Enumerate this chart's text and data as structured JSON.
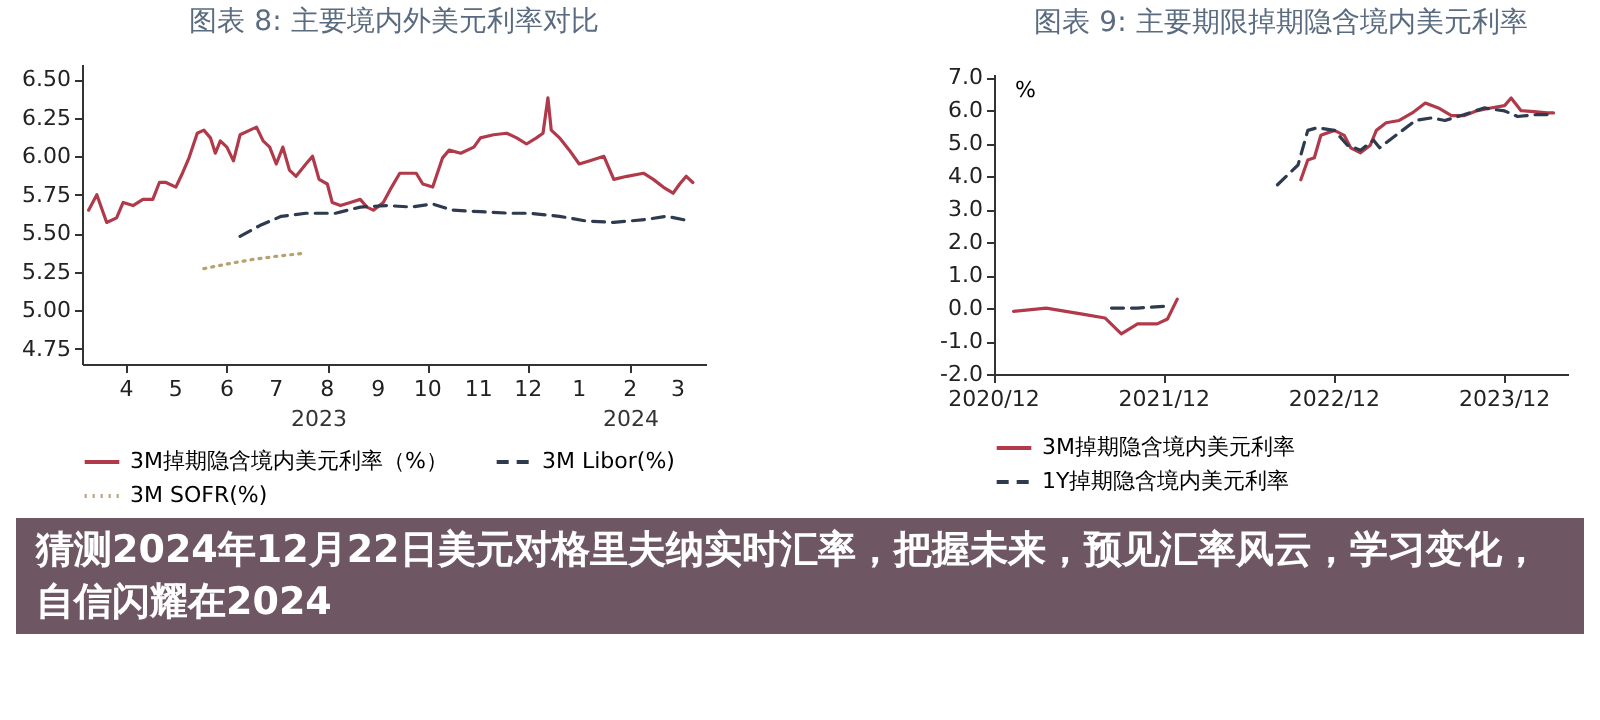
{
  "chart_data": [
    {
      "type": "line",
      "title": "图表 8: 主要境内外美元利率对比",
      "xlim": [
        "2023-03-19",
        "2024-04-01"
      ],
      "ylim": [
        4.65,
        6.6
      ],
      "yticks": [
        {
          "value": 4.75,
          "label": "4.75"
        },
        {
          "value": 5,
          "label": "5.00"
        },
        {
          "value": 5.25,
          "label": "5.25"
        },
        {
          "value": 5.5,
          "label": "5.50"
        },
        {
          "value": 5.75,
          "label": "5.75"
        },
        {
          "value": 6,
          "label": "6.00"
        },
        {
          "value": 6.25,
          "label": "6.25"
        },
        {
          "value": 6.5,
          "label": "6.50"
        }
      ],
      "xticks": [
        {
          "value": "2023-04-15",
          "label": "4"
        },
        {
          "value": "2023-05-15",
          "label": "5"
        },
        {
          "value": "2023-06-15",
          "label": "6"
        },
        {
          "value": "2023-07-15",
          "label": "7"
        },
        {
          "value": "2023-08-15",
          "label": "8"
        },
        {
          "value": "2023-09-15",
          "label": "9"
        },
        {
          "value": "2023-10-15",
          "label": "10"
        },
        {
          "value": "2023-11-15",
          "label": "11"
        },
        {
          "value": "2023-12-15",
          "label": "12"
        },
        {
          "value": "2024-01-15",
          "label": "1"
        },
        {
          "value": "2024-02-15",
          "label": "2"
        },
        {
          "value": "2024-03-15",
          "label": "3"
        }
      ],
      "annotations": [
        "2023",
        "2024"
      ],
      "legend": "bottom",
      "marker": "none",
      "grid": false,
      "series": [
        {
          "name": "3M掉期隐含境内美元利率（%）",
          "color": "#b03a4a",
          "line_style": "solid",
          "x": [
            "2023-03-23",
            "2023-03-28",
            "2023-04-03",
            "2023-04-09",
            "2023-04-13",
            "2023-04-19",
            "2023-04-25",
            "2023-05-01",
            "2023-05-05",
            "2023-05-09",
            "2023-05-15",
            "2023-05-19",
            "2023-05-23",
            "2023-05-28",
            "2023-06-01",
            "2023-06-05",
            "2023-06-08",
            "2023-06-11",
            "2023-06-15",
            "2023-06-19",
            "2023-06-23",
            "2023-06-29",
            "2023-07-03",
            "2023-07-07",
            "2023-07-11",
            "2023-07-15",
            "2023-07-19",
            "2023-07-23",
            "2023-07-27",
            "2023-08-02",
            "2023-08-06",
            "2023-08-10",
            "2023-08-15",
            "2023-08-18",
            "2023-08-23",
            "2023-08-29",
            "2023-09-04",
            "2023-09-08",
            "2023-09-12",
            "2023-09-18",
            "2023-09-22",
            "2023-09-28",
            "2023-10-08",
            "2023-10-12",
            "2023-10-18",
            "2023-10-24",
            "2023-10-28",
            "2023-11-04",
            "2023-11-12",
            "2023-11-16",
            "2023-11-24",
            "2023-12-02",
            "2023-12-08",
            "2023-12-14",
            "2023-12-20",
            "2023-12-24",
            "2023-12-27",
            "2023-12-29",
            "2024-01-03",
            "2024-01-09",
            "2024-01-15",
            "2024-01-21",
            "2024-01-30",
            "2024-02-05",
            "2024-02-13",
            "2024-02-23",
            "2024-02-29",
            "2024-03-06",
            "2024-03-12",
            "2024-03-16",
            "2024-03-20",
            "2024-03-24"
          ],
          "values": [
            5.65,
            5.75,
            5.57,
            5.6,
            5.7,
            5.68,
            5.72,
            5.72,
            5.83,
            5.83,
            5.8,
            5.89,
            5.99,
            6.15,
            6.17,
            6.12,
            6.02,
            6.1,
            6.06,
            5.97,
            6.14,
            6.17,
            6.19,
            6.1,
            6.06,
            5.95,
            6.06,
            5.91,
            5.87,
            5.95,
            6.0,
            5.85,
            5.82,
            5.7,
            5.68,
            5.7,
            5.72,
            5.67,
            5.65,
            5.7,
            5.78,
            5.89,
            5.89,
            5.82,
            5.8,
            5.99,
            6.04,
            6.02,
            6.06,
            6.12,
            6.14,
            6.15,
            6.12,
            6.08,
            6.12,
            6.15,
            6.38,
            6.17,
            6.12,
            6.04,
            5.95,
            5.97,
            6.0,
            5.85,
            5.87,
            5.89,
            5.85,
            5.8,
            5.76,
            5.82,
            5.87,
            5.83
          ]
        },
        {
          "name": "3M Libor(%)",
          "color": "#2e3a4e",
          "line_style": "dashed",
          "x": [
            "2023-06-23",
            "2023-07-05",
            "2023-07-18",
            "2023-08-02",
            "2023-08-20",
            "2023-09-04",
            "2023-09-20",
            "2023-10-05",
            "2023-10-18",
            "2023-10-30",
            "2023-11-16",
            "2023-12-04",
            "2023-12-16",
            "2024-01-03",
            "2024-01-19",
            "2024-02-05",
            "2024-02-25",
            "2024-03-08",
            "2024-03-22"
          ],
          "values": [
            5.48,
            5.55,
            5.61,
            5.63,
            5.63,
            5.67,
            5.68,
            5.67,
            5.69,
            5.65,
            5.64,
            5.63,
            5.63,
            5.61,
            5.58,
            5.57,
            5.59,
            5.61,
            5.58
          ]
        },
        {
          "name": "3M SOFR(%)",
          "color": "#b8a070",
          "line_style": "dotted",
          "x": [
            "2023-06-01",
            "2023-06-15",
            "2023-07-01",
            "2023-07-15",
            "2023-08-01"
          ],
          "values": [
            5.27,
            5.3,
            5.33,
            5.35,
            5.37
          ]
        }
      ]
    },
    {
      "type": "line",
      "title": "图表 9: 主要期限掉期隐含境内美元利率",
      "ylabel": "%",
      "xlim": [
        "2020-12-01",
        "2024-04-15"
      ],
      "ylim": [
        -2,
        7.1
      ],
      "yticks": [
        {
          "value": -2,
          "label": "-2.0"
        },
        {
          "value": -1,
          "label": "-1.0"
        },
        {
          "value": 0,
          "label": "0.0"
        },
        {
          "value": 1,
          "label": "1.0"
        },
        {
          "value": 2,
          "label": "2.0"
        },
        {
          "value": 3,
          "label": "3.0"
        },
        {
          "value": 4,
          "label": "4.0"
        },
        {
          "value": 5,
          "label": "5.0"
        },
        {
          "value": 6,
          "label": "6.0"
        },
        {
          "value": 7,
          "label": "7.0"
        }
      ],
      "xticks": [
        {
          "value": "2020-12-01",
          "label": "2020/12"
        },
        {
          "value": "2021-12-01",
          "label": "2021/12"
        },
        {
          "value": "2022-12-01",
          "label": "2022/12"
        },
        {
          "value": "2023-12-01",
          "label": "2023/12"
        }
      ],
      "legend": "bottom",
      "marker": "none",
      "grid": false,
      "series": [
        {
          "name": "3M掉期隐含境内美元利率",
          "color": "#b03a4a",
          "line_style": "solid",
          "x": [
            "2021-01-12",
            "2021-03-23",
            "2021-06-15",
            "2021-07-27",
            "2021-08-31",
            "2021-10-05",
            "2021-11-16",
            "2021-12-08",
            "2021-12-29",
            "2022-06-01",
            "2022-09-20",
            "2022-10-05",
            "2022-10-19",
            "2022-11-02",
            "2022-12-01",
            "2022-12-22",
            "2023-01-05",
            "2023-01-26",
            "2023-02-16",
            "2023-03-01",
            "2023-03-22",
            "2023-04-19",
            "2023-05-17",
            "2023-06-14",
            "2023-07-12",
            "2023-08-09",
            "2023-09-06",
            "2023-10-04",
            "2023-11-01",
            "2023-12-01",
            "2023-12-15",
            "2024-01-05",
            "2024-02-02",
            "2024-03-01",
            "2024-03-15"
          ],
          "values": [
            -0.1,
            0.0,
            -0.2,
            -0.3,
            -0.78,
            -0.48,
            -0.48,
            -0.33,
            0.27,
            null,
            3.89,
            4.49,
            4.56,
            5.24,
            5.39,
            5.24,
            4.86,
            4.71,
            4.94,
            5.39,
            5.62,
            5.69,
            5.92,
            6.22,
            6.07,
            5.84,
            5.84,
            5.99,
            6.07,
            6.14,
            6.37,
            5.99,
            5.96,
            5.92,
            5.92
          ]
        },
        {
          "name": "1Y掉期隐含境内美元利率",
          "color": "#2e3a4e",
          "line_style": "dashed",
          "x": [
            "2021-08-10",
            "2021-10-05",
            "2021-12-01",
            "2022-06-01",
            "2022-08-01",
            "2022-09-14",
            "2022-10-05",
            "2022-10-26",
            "2022-12-01",
            "2022-12-29",
            "2023-01-26",
            "2023-02-23",
            "2023-03-08",
            "2023-03-29",
            "2023-04-26",
            "2023-05-24",
            "2023-06-28",
            "2023-07-26",
            "2023-09-06",
            "2023-10-18",
            "2023-12-01",
            "2023-12-29",
            "2024-02-09",
            "2024-03-08"
          ],
          "values": [
            0.0,
            0.0,
            0.05,
            null,
            3.74,
            4.34,
            5.39,
            5.47,
            5.39,
            4.94,
            4.79,
            5.09,
            4.86,
            5.09,
            5.39,
            5.69,
            5.77,
            5.69,
            5.87,
            6.07,
            5.98,
            5.81,
            5.87,
            5.87
          ]
        }
      ]
    },
    {
      "type": "other",
      "title": "猜测2024年12月22日美元对格里夫纳实时汇率，把握未来，预见汇率风云，学习变化，自信闪耀在2024"
    }
  ]
}
